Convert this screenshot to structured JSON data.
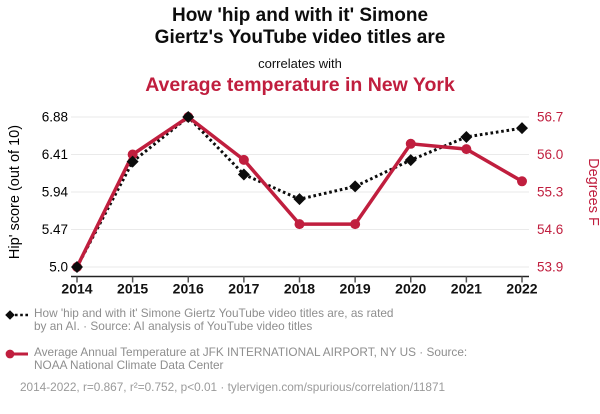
{
  "header": {
    "title": "How 'hip and with it' Simone\nGiertz's YouTube video titles are",
    "connector": "correlates with",
    "subtitle": "Average temperature in New York",
    "subtitle_color": "#c01e3e"
  },
  "chart_data": {
    "type": "line",
    "x": [
      "2014",
      "2015",
      "2016",
      "2017",
      "2018",
      "2019",
      "2020",
      "2021",
      "2022"
    ],
    "series": [
      {
        "name": "hip-score",
        "axis": "left",
        "color": "#0c0c0c",
        "line_style": "dotted",
        "marker": "diamond",
        "values": [
          5.0,
          6.32,
          6.88,
          6.16,
          5.85,
          6.01,
          6.34,
          6.63,
          6.74
        ]
      },
      {
        "name": "temperature",
        "axis": "right",
        "color": "#c01e3e",
        "line_style": "solid",
        "marker": "circle",
        "values": [
          53.9,
          56.0,
          56.7,
          55.9,
          54.7,
          54.7,
          56.2,
          56.1,
          55.5
        ]
      }
    ],
    "left_axis": {
      "label": "Hip' score (out of 10)",
      "ticks": [
        "5.0",
        "5.47",
        "5.94",
        "6.41",
        "6.88"
      ],
      "range": [
        5.0,
        6.88
      ],
      "color": "#000000"
    },
    "right_axis": {
      "label": "Degrees F",
      "ticks": [
        "53.9",
        "54.6",
        "55.3",
        "56.0",
        "56.7"
      ],
      "range": [
        53.9,
        56.7
      ],
      "color": "#c01e3e"
    },
    "grid": "horizontal",
    "legend_position": "bottom"
  },
  "legend": {
    "items": [
      {
        "label": "How 'hip and with it' Simone Giertz YouTube video titles are, as rated\nby an AI. · Source: AI analysis of YouTube video titles",
        "marker": "diamond-dotted-line",
        "color": "#0c0c0c"
      },
      {
        "label": "Average Annual Temperature at JFK INTERNATIONAL AIRPORT, NY US · Source:\nNOAA National Climate Data Center",
        "marker": "circle-solid-line",
        "color": "#c01e3e"
      }
    ]
  },
  "footer": {
    "stats": "2014-2022, r=0.867, r²=0.752, p<0.01 · tylervigen.com/spurious/correlation/11871"
  }
}
